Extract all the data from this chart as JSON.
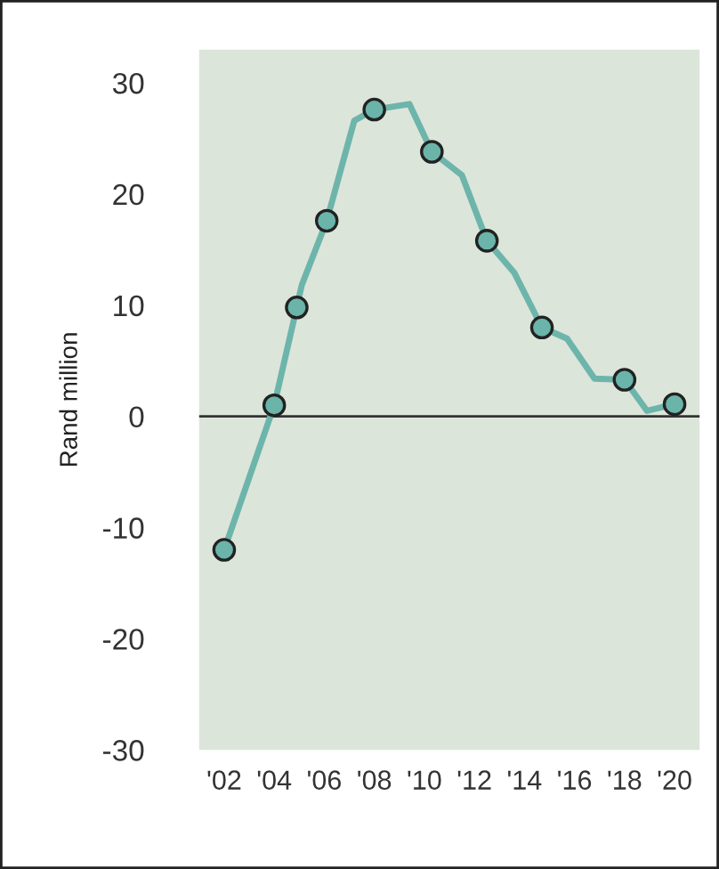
{
  "chart_data": {
    "type": "line",
    "ylabel": "Rand million",
    "series": [
      {
        "color": "#6db5ab",
        "x": [
          2002,
          2004.0,
          2004.9,
          2005.1,
          2006.1,
          2007.2,
          2008.0,
          2009.4,
          2010.3,
          2011.5,
          2012.5,
          2013.6,
          2014.7,
          2015.7,
          2016.8,
          2018.0,
          2018.9,
          2020.0
        ],
        "values": [
          -12,
          1,
          9.8,
          11.8,
          17.6,
          26.6,
          27.6,
          28.1,
          23.8,
          21.7,
          15.8,
          12.9,
          8.0,
          7.0,
          3.4,
          3.3,
          0.5,
          1.1
        ],
        "marker": "none"
      },
      {
        "type": "scatter",
        "color": "#6ab4aa",
        "x": [
          2002,
          2004.0,
          2004.9,
          2006.1,
          2008.0,
          2010.3,
          2012.5,
          2014.7,
          2018.0,
          2020.0
        ],
        "values": [
          -12,
          1,
          9.8,
          17.6,
          27.6,
          23.8,
          15.8,
          8.0,
          3.3,
          1.1
        ],
        "marker": "circle"
      }
    ],
    "xlim": [
      2001,
      2021
    ],
    "xticks": [
      {
        "value": 2002,
        "label": "'02"
      },
      {
        "value": 2004,
        "label": "'04"
      },
      {
        "value": 2006,
        "label": "'06"
      },
      {
        "value": 2008,
        "label": "'08"
      },
      {
        "value": 2010,
        "label": "'10"
      },
      {
        "value": 2012,
        "label": "'12"
      },
      {
        "value": 2014,
        "label": "'14"
      },
      {
        "value": 2016,
        "label": "'16"
      },
      {
        "value": 2018,
        "label": "'18"
      },
      {
        "value": 2020,
        "label": "'20"
      }
    ],
    "ylim": [
      -30,
      33
    ],
    "yticks": [
      -30,
      -20,
      -10,
      0,
      10,
      20,
      30
    ],
    "ref_lines": [
      {
        "axis": "y",
        "value": 0,
        "color": "#333333"
      }
    ],
    "grid": false,
    "legend": false
  }
}
